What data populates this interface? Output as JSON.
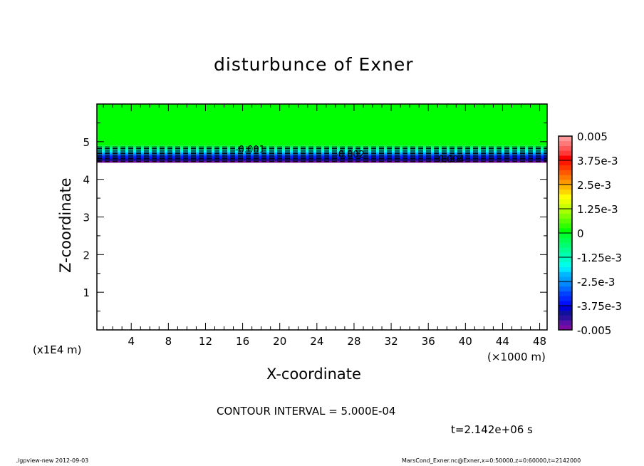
{
  "chart_data": {
    "type": "heatmap",
    "title": "disturbunce of Exner",
    "xlabel": "X-coordinate",
    "ylabel": "Z-coordinate",
    "x_unit": "(×1000 m)",
    "y_unit": "(x1E4 m)",
    "xlim": [
      0.3,
      48.8
    ],
    "ylim": [
      0,
      6
    ],
    "x_ticks": [
      "4",
      "8",
      "12",
      "16",
      "20",
      "24",
      "28",
      "32",
      "36",
      "40",
      "44",
      "48"
    ],
    "y_ticks": [
      "1",
      "2",
      "3",
      "4",
      "5"
    ],
    "field": {
      "value_above": 0,
      "transition_top_z": 4.9,
      "transition_bottom_z": 4.45,
      "value_at_bottom": -0.005,
      "below": "no data"
    },
    "contour_labels": [
      "-0.001",
      "-0.002",
      "-0.004"
    ],
    "contour_style": "dashed (negative)",
    "colorbar": {
      "min": -0.005,
      "max": 0.005,
      "tick_labels": [
        "0.005",
        "3.75e-3",
        "2.5e-3",
        "1.25e-3",
        "0",
        "-1.25e-3",
        "-2.5e-3",
        "-3.75e-3",
        "-0.005"
      ],
      "colors_bottom_to_top": [
        "#7a0aa0",
        "#5a10a8",
        "#2c10a0",
        "#10109a",
        "#0000d8",
        "#0010ff",
        "#0028ff",
        "#0040ff",
        "#0068ff",
        "#0088ff",
        "#00a0ff",
        "#00b8ff",
        "#00e8ff",
        "#00ffe8",
        "#00ffc8",
        "#00ffb0",
        "#00ff90",
        "#00ff70",
        "#00ff50",
        "#00ff30",
        "#00ff00",
        "#30ff00",
        "#58ff00",
        "#80ff00",
        "#a8ff00",
        "#c8ff00",
        "#e8ff00",
        "#ffff00",
        "#ffd800",
        "#ffb800",
        "#ff9800",
        "#ff7800",
        "#ff5800",
        "#ff3800",
        "#ff1800",
        "#ff0000",
        "#ff3838",
        "#ff5858",
        "#ff7878",
        "#ff9898"
      ]
    },
    "annotations": [
      "CONTOUR INTERVAL = 5.000E-04",
      "t=2.142e+06 s"
    ]
  },
  "footer": {
    "left": "./gpview-new   2012-09-03",
    "right": "MarsCond_Exner.nc@Exner,x=0:50000,z=0:60000,t=2142000"
  }
}
